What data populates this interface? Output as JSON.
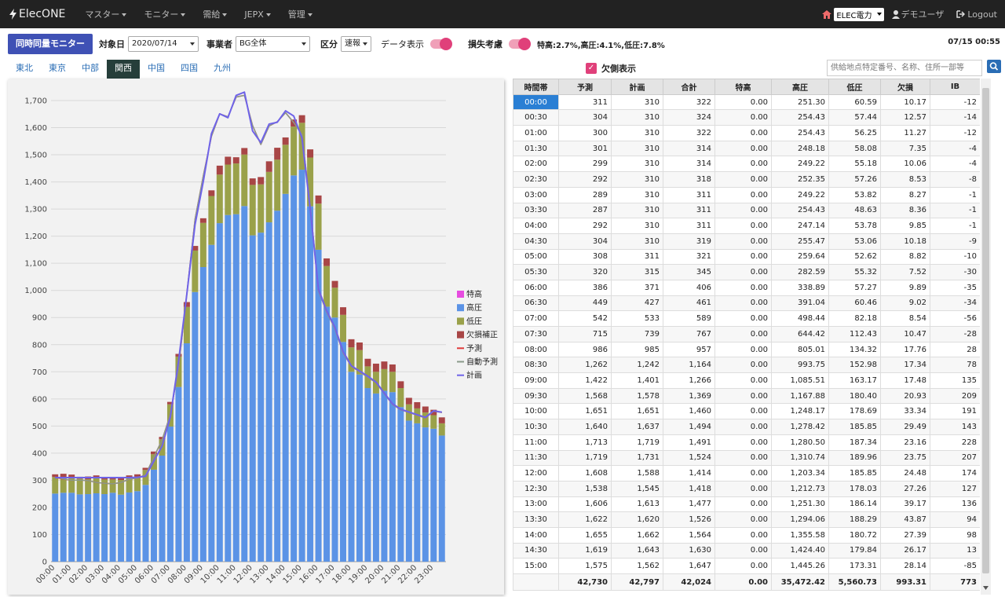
{
  "nav": {
    "brand": "ElecONE",
    "menus": [
      "マスター",
      "モニター",
      "需給",
      "JEPX",
      "管理"
    ],
    "company": "ELEC電力",
    "user": "デモユーザ",
    "logout": "Logout"
  },
  "toolbar": {
    "monitor_button": "同時同量モニター",
    "date_label": "対象日",
    "date_value": "2020/07/14",
    "operator_label": "事業者",
    "operator_value": "BG全体",
    "class_label": "区分",
    "class_value": "速報",
    "data_display_label": "データ表示",
    "loss_label": "損失考慮",
    "loss_text": "特高:2.7%,高圧:4.1%,低圧:7.8%",
    "clock": "07/15 00:55"
  },
  "regions": [
    "東北",
    "東京",
    "中部",
    "関西",
    "中国",
    "四国",
    "九州"
  ],
  "active_region": "関西",
  "shortage_label": "欠側表示",
  "search": {
    "placeholder": "供給地点特定番号、名称、住所一部等"
  },
  "table": {
    "headers": [
      "時間帯",
      "予測",
      "計画",
      "合計",
      "特高",
      "高圧",
      "低圧",
      "欠損",
      "IB"
    ],
    "rows": [
      [
        "00:00",
        "311",
        "310",
        "322",
        "0.00",
        "251.30",
        "60.59",
        "10.17",
        "-12"
      ],
      [
        "00:30",
        "304",
        "310",
        "324",
        "0.00",
        "254.43",
        "57.44",
        "12.57",
        "-14"
      ],
      [
        "01:00",
        "300",
        "310",
        "322",
        "0.00",
        "254.43",
        "56.25",
        "11.27",
        "-12"
      ],
      [
        "01:30",
        "301",
        "310",
        "314",
        "0.00",
        "248.18",
        "58.08",
        "7.35",
        "-4"
      ],
      [
        "02:00",
        "299",
        "310",
        "314",
        "0.00",
        "249.22",
        "55.18",
        "10.06",
        "-4"
      ],
      [
        "02:30",
        "292",
        "310",
        "318",
        "0.00",
        "252.35",
        "57.26",
        "8.53",
        "-8"
      ],
      [
        "03:00",
        "289",
        "310",
        "311",
        "0.00",
        "249.22",
        "53.82",
        "8.27",
        "-1"
      ],
      [
        "03:30",
        "287",
        "310",
        "311",
        "0.00",
        "254.43",
        "48.63",
        "8.36",
        "-1"
      ],
      [
        "04:00",
        "292",
        "310",
        "311",
        "0.00",
        "247.14",
        "53.78",
        "9.85",
        "-1"
      ],
      [
        "04:30",
        "304",
        "310",
        "319",
        "0.00",
        "255.47",
        "53.06",
        "10.18",
        "-9"
      ],
      [
        "05:00",
        "308",
        "311",
        "321",
        "0.00",
        "259.64",
        "52.62",
        "8.82",
        "-10"
      ],
      [
        "05:30",
        "320",
        "315",
        "345",
        "0.00",
        "282.59",
        "55.32",
        "7.52",
        "-30"
      ],
      [
        "06:00",
        "386",
        "371",
        "406",
        "0.00",
        "338.89",
        "57.27",
        "9.89",
        "-35"
      ],
      [
        "06:30",
        "449",
        "427",
        "461",
        "0.00",
        "391.04",
        "60.46",
        "9.02",
        "-34"
      ],
      [
        "07:00",
        "542",
        "533",
        "589",
        "0.00",
        "498.44",
        "82.18",
        "8.54",
        "-56"
      ],
      [
        "07:30",
        "715",
        "739",
        "767",
        "0.00",
        "644.42",
        "112.43",
        "10.47",
        "-28"
      ],
      [
        "08:00",
        "986",
        "985",
        "957",
        "0.00",
        "805.01",
        "134.32",
        "17.76",
        "28"
      ],
      [
        "08:30",
        "1,262",
        "1,242",
        "1,164",
        "0.00",
        "993.75",
        "152.98",
        "17.34",
        "78"
      ],
      [
        "09:00",
        "1,422",
        "1,401",
        "1,266",
        "0.00",
        "1,085.51",
        "163.17",
        "17.48",
        "135"
      ],
      [
        "09:30",
        "1,568",
        "1,578",
        "1,369",
        "0.00",
        "1,167.88",
        "180.40",
        "20.93",
        "209"
      ],
      [
        "10:00",
        "1,651",
        "1,651",
        "1,460",
        "0.00",
        "1,248.17",
        "178.69",
        "33.34",
        "191"
      ],
      [
        "10:30",
        "1,640",
        "1,637",
        "1,494",
        "0.00",
        "1,278.42",
        "185.85",
        "29.49",
        "143"
      ],
      [
        "11:00",
        "1,713",
        "1,719",
        "1,491",
        "0.00",
        "1,280.50",
        "187.34",
        "23.16",
        "228"
      ],
      [
        "11:30",
        "1,719",
        "1,731",
        "1,524",
        "0.00",
        "1,310.74",
        "189.96",
        "23.75",
        "207"
      ],
      [
        "12:00",
        "1,608",
        "1,588",
        "1,414",
        "0.00",
        "1,203.34",
        "185.85",
        "24.48",
        "174"
      ],
      [
        "12:30",
        "1,538",
        "1,545",
        "1,418",
        "0.00",
        "1,212.73",
        "178.03",
        "27.26",
        "127"
      ],
      [
        "13:00",
        "1,606",
        "1,613",
        "1,477",
        "0.00",
        "1,251.30",
        "186.14",
        "39.17",
        "136"
      ],
      [
        "13:30",
        "1,622",
        "1,620",
        "1,526",
        "0.00",
        "1,294.06",
        "188.29",
        "43.87",
        "94"
      ],
      [
        "14:00",
        "1,655",
        "1,662",
        "1,564",
        "0.00",
        "1,355.58",
        "180.72",
        "27.39",
        "98"
      ],
      [
        "14:30",
        "1,619",
        "1,643",
        "1,630",
        "0.00",
        "1,424.40",
        "179.84",
        "26.17",
        "13"
      ],
      [
        "15:00",
        "1,575",
        "1,562",
        "1,647",
        "0.00",
        "1,445.26",
        "173.31",
        "28.14",
        "-85"
      ]
    ],
    "totals": [
      "",
      "42,730",
      "42,797",
      "42,024",
      "0.00",
      "35,472.42",
      "5,560.73",
      "993.31",
      "773"
    ]
  },
  "chart_data": {
    "type": "bar",
    "stacked": true,
    "ylim": [
      0,
      1700
    ],
    "yticks": [
      0,
      100,
      200,
      300,
      400,
      500,
      600,
      700,
      800,
      900,
      1000,
      1100,
      1200,
      1300,
      1400,
      1500,
      1600,
      1700
    ],
    "ytick_labels": [
      "0",
      "100",
      "200",
      "300",
      "400",
      "500",
      "600",
      "700",
      "800",
      "900",
      "1,000",
      "1,100",
      "1,200",
      "1,300",
      "1,400",
      "1,500",
      "1,600",
      "1,700"
    ],
    "xtick_labels": [
      "00:00",
      "01:00",
      "02:00",
      "03:00",
      "04:00",
      "05:00",
      "06:00",
      "07:00",
      "08:00",
      "09:00",
      "10:00",
      "11:00",
      "12:00",
      "13:00",
      "14:00",
      "15:00",
      "16:00",
      "17:00",
      "18:00",
      "19:00",
      "20:00",
      "21:00",
      "22:00",
      "23:00"
    ],
    "legend_position": "right",
    "categories": [
      "00:00",
      "00:30",
      "01:00",
      "01:30",
      "02:00",
      "02:30",
      "03:00",
      "03:30",
      "04:00",
      "04:30",
      "05:00",
      "05:30",
      "06:00",
      "06:30",
      "07:00",
      "07:30",
      "08:00",
      "08:30",
      "09:00",
      "09:30",
      "10:00",
      "10:30",
      "11:00",
      "11:30",
      "12:00",
      "12:30",
      "13:00",
      "13:30",
      "14:00",
      "14:30",
      "15:00",
      "15:30",
      "16:00",
      "16:30",
      "17:00",
      "17:30",
      "18:00",
      "18:30",
      "19:00",
      "19:30",
      "20:00",
      "20:30",
      "21:00",
      "21:30",
      "22:00",
      "22:30",
      "23:00",
      "23:30"
    ],
    "series": [
      {
        "name": "特高",
        "kind": "bar",
        "color": "#e74ce0",
        "values": [
          0,
          0,
          0,
          0,
          0,
          0,
          0,
          0,
          0,
          0,
          0,
          0,
          0,
          0,
          0,
          0,
          0,
          0,
          0,
          0,
          0,
          0,
          0,
          0,
          0,
          0,
          0,
          0,
          0,
          0,
          0,
          0,
          0,
          0,
          0,
          0,
          0,
          0,
          0,
          0,
          0,
          0,
          0,
          0,
          0,
          0,
          0,
          0
        ]
      },
      {
        "name": "高圧",
        "kind": "bar",
        "color": "#5b93e6",
        "values": [
          251,
          254,
          254,
          248,
          249,
          252,
          249,
          254,
          247,
          255,
          260,
          283,
          339,
          391,
          498,
          644,
          805,
          994,
          1086,
          1168,
          1248,
          1278,
          1281,
          1311,
          1203,
          1213,
          1251,
          1294,
          1356,
          1424,
          1445,
          1310,
          1150,
          940,
          900,
          810,
          700,
          690,
          640,
          620,
          630,
          625,
          570,
          520,
          510,
          495,
          490,
          465
        ]
      },
      {
        "name": "低圧",
        "kind": "bar",
        "color": "#9aa14a",
        "values": [
          61,
          57,
          56,
          58,
          55,
          57,
          54,
          49,
          54,
          53,
          53,
          55,
          57,
          60,
          82,
          112,
          134,
          153,
          163,
          180,
          179,
          186,
          187,
          190,
          186,
          178,
          186,
          188,
          181,
          180,
          173,
          180,
          170,
          150,
          110,
          100,
          90,
          90,
          80,
          80,
          80,
          75,
          70,
          60,
          55,
          55,
          50,
          45
        ]
      },
      {
        "name": "欠損補正",
        "kind": "bar",
        "color": "#a84646",
        "values": [
          10,
          13,
          11,
          7,
          10,
          9,
          8,
          8,
          10,
          10,
          9,
          8,
          10,
          9,
          9,
          10,
          18,
          17,
          17,
          21,
          33,
          29,
          23,
          24,
          24,
          27,
          39,
          44,
          27,
          26,
          28,
          30,
          30,
          28,
          25,
          28,
          30,
          28,
          28,
          30,
          28,
          27,
          25,
          24,
          23,
          22,
          20,
          22
        ]
      },
      {
        "name": "予測",
        "kind": "line",
        "color": "#e03a3a",
        "values": [
          311,
          304,
          300,
          301,
          299,
          292,
          289,
          287,
          292,
          304,
          308,
          320,
          386,
          449,
          542,
          715,
          986,
          1262,
          1422,
          1568,
          1651,
          1640,
          1713,
          1719,
          1608,
          1538,
          1606,
          1622,
          1655,
          1619,
          1575,
          1310,
          1000,
          920,
          860,
          770,
          720,
          700,
          680,
          660,
          620,
          580,
          560,
          550,
          540,
          530,
          555,
          550
        ]
      },
      {
        "name": "自動予測",
        "kind": "line",
        "color": "#8a9a8a",
        "values": [
          312,
          305,
          300,
          301,
          299,
          292,
          289,
          287,
          292,
          304,
          308,
          320,
          386,
          449,
          542,
          715,
          986,
          1262,
          1422,
          1568,
          1651,
          1640,
          1713,
          1719,
          1608,
          1538,
          1606,
          1622,
          1655,
          1619,
          1575,
          1310,
          1000,
          920,
          860,
          770,
          720,
          700,
          680,
          660,
          620,
          580,
          560,
          550,
          540,
          530,
          555,
          550
        ]
      },
      {
        "name": "計画",
        "kind": "line",
        "color": "#6f63e8",
        "values": [
          310,
          310,
          310,
          310,
          310,
          310,
          310,
          310,
          310,
          310,
          311,
          315,
          371,
          427,
          533,
          739,
          985,
          1242,
          1401,
          1578,
          1651,
          1637,
          1719,
          1731,
          1588,
          1545,
          1613,
          1620,
          1662,
          1643,
          1562,
          1300,
          1005,
          925,
          865,
          775,
          722,
          703,
          684,
          662,
          622,
          582,
          562,
          552,
          542,
          532,
          556,
          551
        ]
      }
    ]
  }
}
